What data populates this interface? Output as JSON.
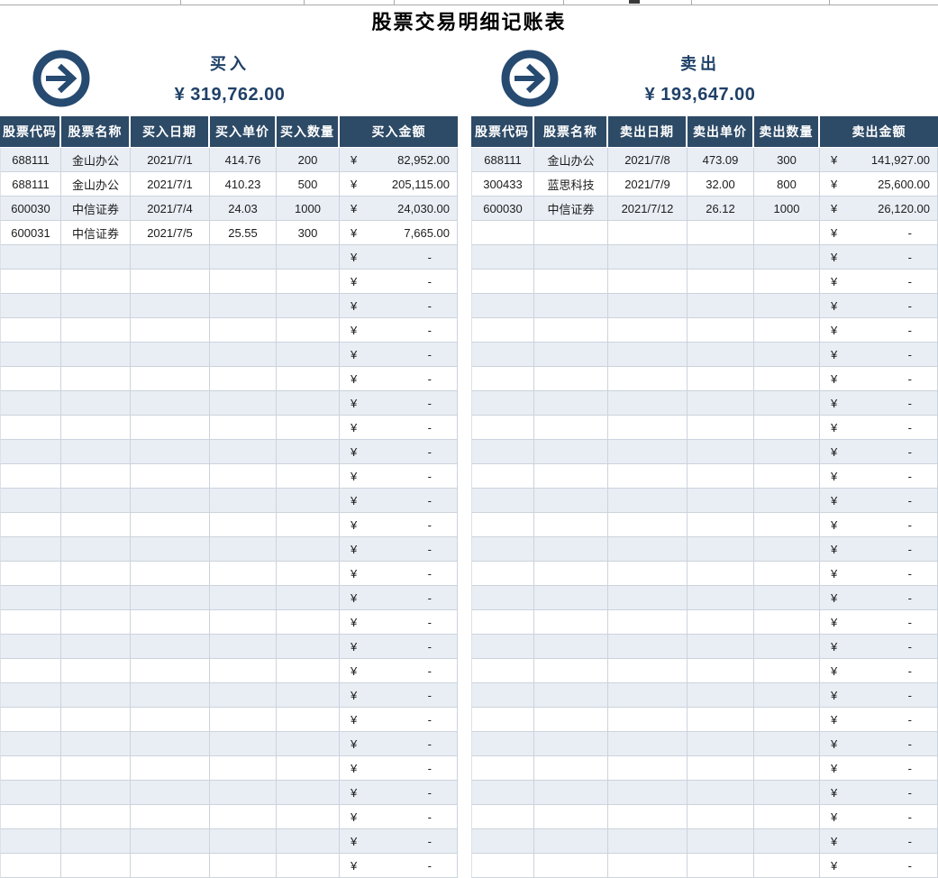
{
  "page": {
    "title": "股票交易明细记账表"
  },
  "colors": {
    "header_navy": "#2d4a66",
    "accent_navy_text": "#1f4067",
    "icon_navy": "#264a70",
    "row_stripe": "#e9eef5",
    "grid_border": "#ccd3dc"
  },
  "icons": {
    "buy": "arrow-right-circle-icon",
    "sell": "arrow-right-circle-icon"
  },
  "buy": {
    "label": "买入",
    "total": "¥ 319,762.00",
    "currency": "¥",
    "empty_value": "-",
    "total_row_count": 30,
    "columns": [
      "股票代码",
      "股票名称",
      "买入日期",
      "买入单价",
      "买入数量",
      "买入金额"
    ],
    "rows": [
      {
        "code": "688111",
        "name": "金山办公",
        "date": "2021/7/1",
        "price": "414.76",
        "qty": "200",
        "amount": "82,952.00"
      },
      {
        "code": "688111",
        "name": "金山办公",
        "date": "2021/7/1",
        "price": "410.23",
        "qty": "500",
        "amount": "205,115.00"
      },
      {
        "code": "600030",
        "name": "中信证券",
        "date": "2021/7/4",
        "price": "24.03",
        "qty": "1000",
        "amount": "24,030.00"
      },
      {
        "code": "600031",
        "name": "中信证券",
        "date": "2021/7/5",
        "price": "25.55",
        "qty": "300",
        "amount": "7,665.00"
      }
    ]
  },
  "sell": {
    "label": "卖出",
    "total": "¥ 193,647.00",
    "currency": "¥",
    "empty_value": "-",
    "total_row_count": 30,
    "columns": [
      "股票代码",
      "股票名称",
      "卖出日期",
      "卖出单价",
      "卖出数量",
      "卖出金额"
    ],
    "rows": [
      {
        "code": "688111",
        "name": "金山办公",
        "date": "2021/7/8",
        "price": "473.09",
        "qty": "300",
        "amount": "141,927.00"
      },
      {
        "code": "300433",
        "name": "蓝思科技",
        "date": "2021/7/9",
        "price": "32.00",
        "qty": "800",
        "amount": "25,600.00"
      },
      {
        "code": "600030",
        "name": "中信证券",
        "date": "2021/7/12",
        "price": "26.12",
        "qty": "1000",
        "amount": "26,120.00"
      }
    ]
  }
}
